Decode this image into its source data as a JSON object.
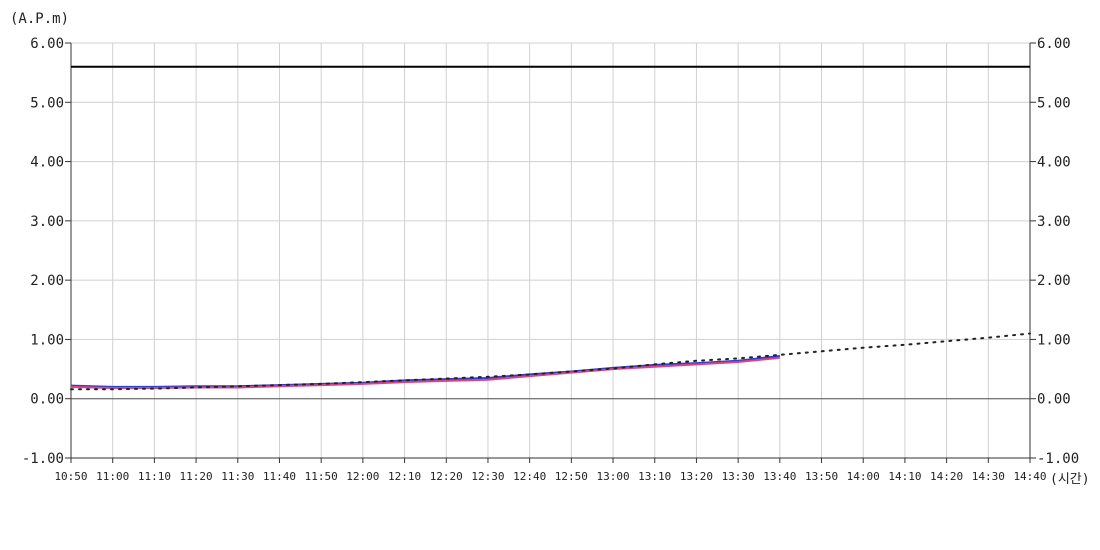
{
  "chart_data": {
    "type": "line",
    "title": "",
    "ylabel_unit": "(A.P.m)",
    "xlabel_unit": "(시간)",
    "ylim": [
      -1.0,
      6.0
    ],
    "yticks": [
      "-1.00",
      "0.00",
      "1.00",
      "2.00",
      "3.00",
      "4.00",
      "5.00",
      "6.00"
    ],
    "x_tick_labels": [
      "10:50",
      "11:00",
      "11:10",
      "11:20",
      "11:30",
      "11:40",
      "11:50",
      "12:00",
      "12:10",
      "12:20",
      "12:30",
      "12:40",
      "12:50",
      "13:00",
      "13:10",
      "13:20",
      "13:30",
      "13:40",
      "13:50",
      "14:00",
      "14:10",
      "14:20",
      "14:30",
      "14:40"
    ],
    "grid": true,
    "zero_line": 0.0,
    "threshold_line": {
      "value": 5.6,
      "color": "#000000"
    },
    "series": [
      {
        "color": "#2244cc",
        "style": "solid",
        "values": [
          0.22,
          0.2,
          0.2,
          0.21,
          0.21,
          0.23,
          0.25,
          0.27,
          0.31,
          0.33,
          0.35,
          0.41,
          0.46,
          0.52,
          0.57,
          0.6,
          0.64,
          0.72
        ]
      },
      {
        "color": "#e0408a",
        "style": "solid",
        "values": [
          0.2,
          0.18,
          0.18,
          0.19,
          0.19,
          0.21,
          0.23,
          0.25,
          0.28,
          0.3,
          0.32,
          0.38,
          0.44,
          0.5,
          0.54,
          0.58,
          0.62,
          0.69
        ]
      },
      {
        "color": "#222222",
        "style": "dotted",
        "values": [
          0.16,
          0.16,
          0.17,
          0.19,
          0.21,
          0.23,
          0.25,
          0.28,
          0.31,
          0.34,
          0.37,
          0.41,
          0.46,
          0.51,
          0.58,
          0.64,
          0.68,
          0.74,
          0.8,
          0.86,
          0.91,
          0.97,
          1.03,
          1.1
        ]
      }
    ]
  }
}
